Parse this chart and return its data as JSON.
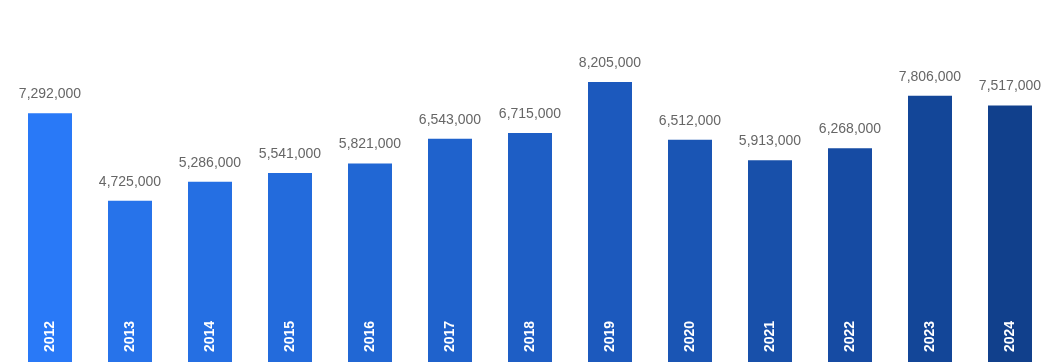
{
  "chart_data": {
    "type": "bar",
    "categories": [
      "2012",
      "2013",
      "2014",
      "2015",
      "2016",
      "2017",
      "2018",
      "2019",
      "2020",
      "2021",
      "2022",
      "2023",
      "2024"
    ],
    "values": [
      7292000,
      4725000,
      5286000,
      5541000,
      5821000,
      6543000,
      6715000,
      8205000,
      6512000,
      5913000,
      6268000,
      7806000,
      7517000
    ],
    "colors": [
      "#2979f7",
      "#2773ea",
      "#256fe3",
      "#236bdc",
      "#2167d4",
      "#1f62cc",
      "#1e5ec5",
      "#1c59bd",
      "#1a55b4",
      "#1850aa",
      "#164ba3",
      "#134698",
      "#11408c"
    ],
    "value_labels": [
      "7,292,000",
      "4,725,000",
      "5,286,000",
      "5,541,000",
      "5,821,000",
      "6,543,000",
      "6,715,000",
      "8,205,000",
      "6,512,000",
      "5,913,000",
      "6,268,000",
      "7,806,000",
      "7,517,000"
    ],
    "grid": false,
    "legend": false,
    "tick_labels": false
  }
}
